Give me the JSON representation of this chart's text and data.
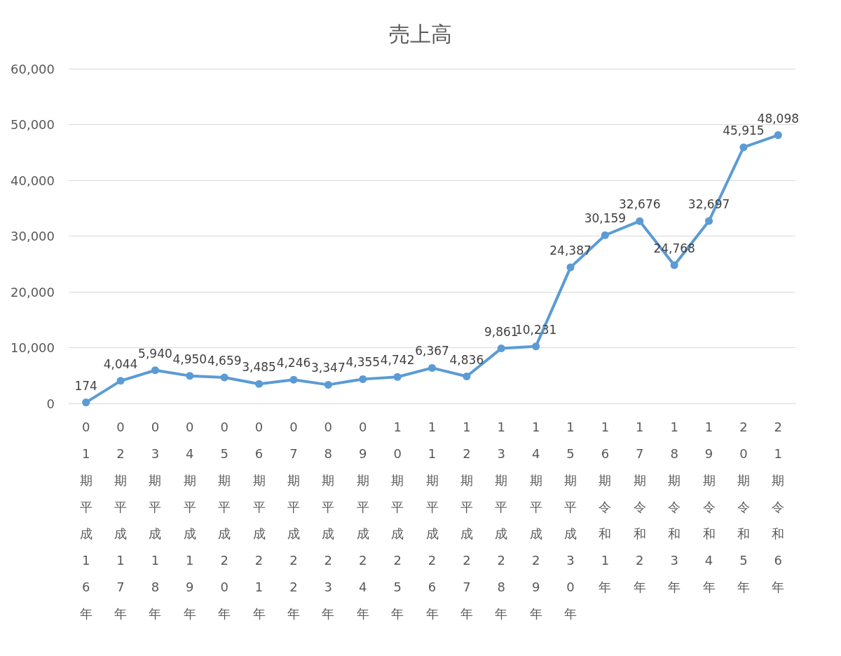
{
  "chart_data": {
    "type": "line",
    "title": "売上高",
    "categories": [
      "01期平成16年",
      "02期平成17年",
      "03期平成18年",
      "04期平成19年",
      "05期平成20年",
      "06期平成21年",
      "07期平成22年",
      "08期平成23年",
      "09期平成24年",
      "10期平成25年",
      "11期平成26年",
      "12期平成27年",
      "13期平成28年",
      "14期平成29年",
      "15期平成30年",
      "16期令和1年",
      "17期令和2年",
      "18期令和3年",
      "19期令和4年",
      "20期令和5年",
      "21期令和6年"
    ],
    "series": [
      {
        "color": "#5b9bd5",
        "values": [
          174,
          4044,
          5940,
          4950,
          4659,
          3485,
          4246,
          3347,
          4355,
          4742,
          6367,
          4836,
          9861,
          10231,
          24387,
          30159,
          32676,
          24768,
          32697,
          45915,
          48098
        ],
        "value_labels": [
          "174",
          "4,044",
          "5,940",
          "4,950",
          "4,659",
          "3,485",
          "4,246",
          "3,347",
          "4,355",
          "4,742",
          "6,367",
          "4,836",
          "9,861",
          "10,231",
          "24,387",
          "30,159",
          "32,676",
          "24,768",
          "32,697",
          "45,915",
          "48,098"
        ]
      }
    ],
    "ylim": [
      0,
      60000
    ],
    "yticks": [
      0,
      {
        "value": 10000,
        "label": "10,000"
      },
      {
        "value": 20000,
        "label": "20,000"
      },
      {
        "value": 30000,
        "label": "30,000"
      },
      {
        "value": 40000,
        "label": "40,000"
      },
      {
        "value": 50000,
        "label": "50,000"
      },
      {
        "value": 60000,
        "label": "60,000"
      }
    ],
    "grid": "y",
    "marker": "circle",
    "line_style": "solid"
  }
}
